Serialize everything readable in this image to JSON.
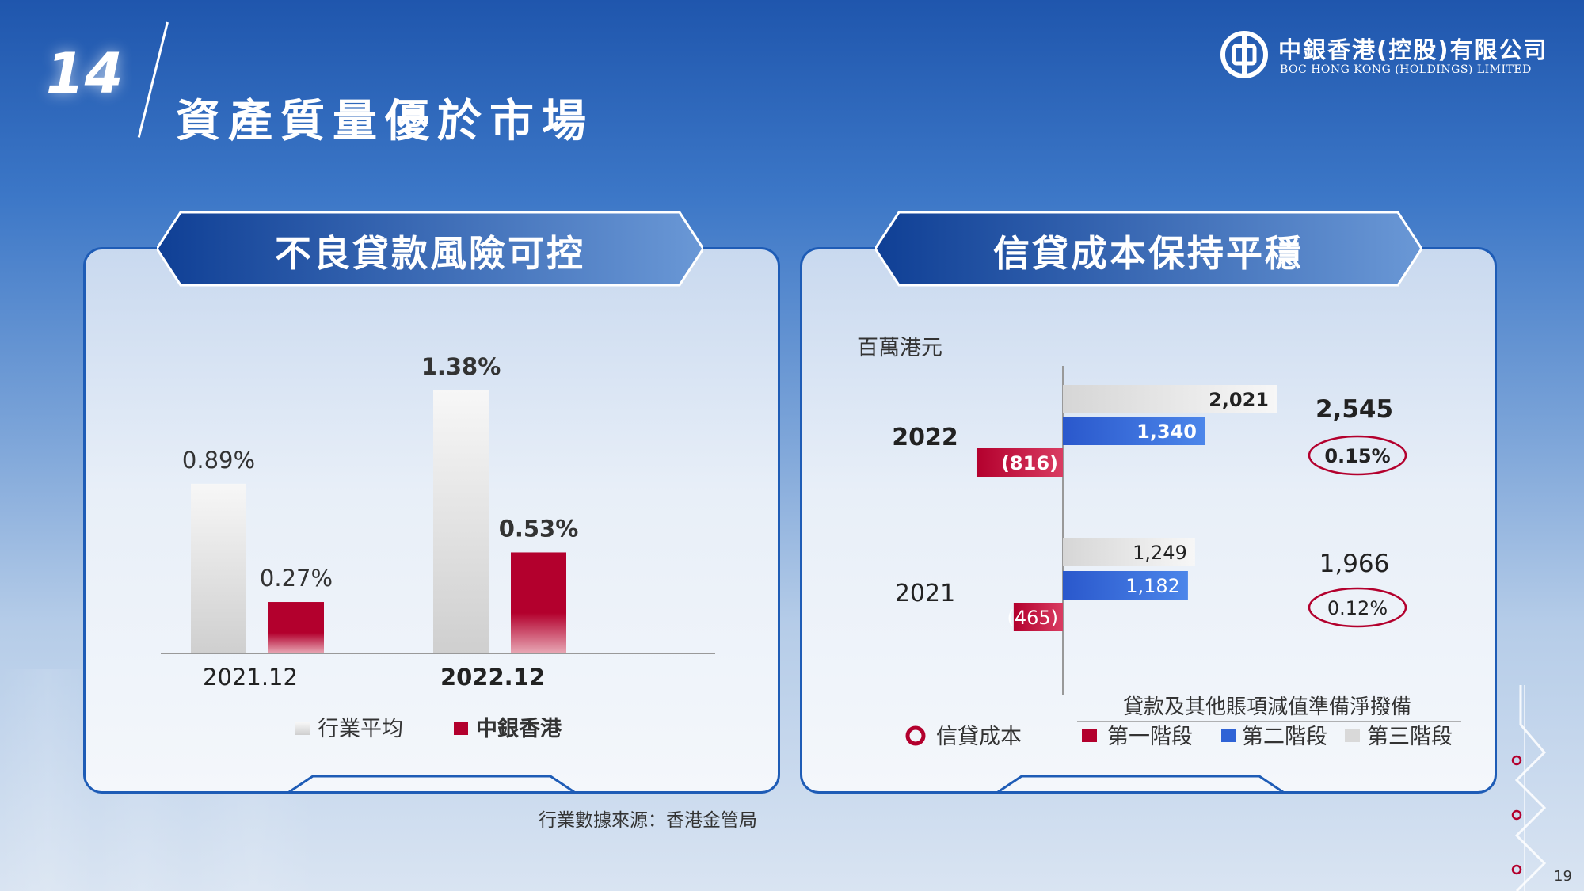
{
  "slide": {
    "number": "14",
    "title": "資產質量優於市場",
    "page_number": "19",
    "source_note": "行業數據來源：香港金管局"
  },
  "logo": {
    "name_cn": "中銀香港(控股)有限公司",
    "name_en": "BOC HONG KONG (HOLDINGS) LIMITED"
  },
  "colors": {
    "brand_blue": "#1e5cb6",
    "boc_red": "#b3002d",
    "industry_grey": "#d9d9d9",
    "stage2_blue": "#2f63d6"
  },
  "chart_data": [
    {
      "type": "bar",
      "title": "不良貸款風險可控",
      "categories": [
        "2021.12",
        "2022.12"
      ],
      "series": [
        {
          "name": "行業平均",
          "values": [
            0.89,
            1.38
          ],
          "labels": [
            "0.89%",
            "1.38%"
          ]
        },
        {
          "name": "中銀香港",
          "values": [
            0.27,
            0.53
          ],
          "labels": [
            "0.27%",
            "0.53%"
          ]
        }
      ],
      "ylim": [
        0,
        1.6
      ],
      "legend": "bottom",
      "grid": false
    },
    {
      "type": "bar",
      "orientation": "horizontal",
      "title": "信貸成本保持平穩",
      "unit": "百萬港元",
      "categories": [
        "2022",
        "2021"
      ],
      "series": [
        {
          "name": "第三階段",
          "values": [
            2021,
            1249
          ],
          "labels": [
            "2,021",
            "1,249"
          ]
        },
        {
          "name": "第二階段",
          "values": [
            1340,
            1182
          ],
          "labels": [
            "1,340",
            "1,182"
          ]
        },
        {
          "name": "第一階段",
          "values": [
            -816,
            -465
          ],
          "labels": [
            "(816)",
            "(465)"
          ]
        }
      ],
      "totals": [
        "2,545",
        "1,966"
      ],
      "credit_cost": [
        "0.15%",
        "0.12%"
      ],
      "legend_title": "貸款及其他賬項減值準備淨撥備",
      "credit_cost_legend": "信貸成本",
      "legend": "bottom",
      "grid": false
    }
  ]
}
